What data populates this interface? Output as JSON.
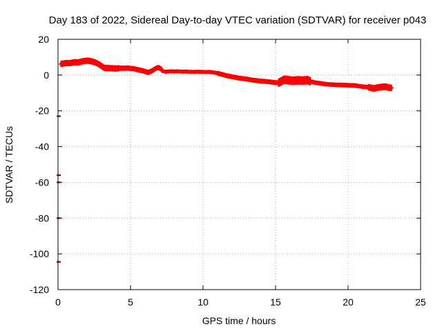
{
  "chart_data": {
    "type": "scatter",
    "title": "Day 183 of 2022, Sidereal Day-to-day VTEC variation (SDTVAR) for receiver p043",
    "xlabel": "GPS time / hours",
    "ylabel": "SDTVAR / TECUs",
    "xlim": [
      0,
      25
    ],
    "ylim": [
      -120,
      20
    ],
    "xticks": [
      0,
      5,
      10,
      15,
      20,
      25
    ],
    "yticks": [
      20,
      0,
      -20,
      -40,
      -60,
      -80,
      -100,
      -120
    ],
    "grid": true,
    "series": [
      {
        "name": "SDTVAR",
        "color": "#ff0000",
        "outlier_color": "#8b0000",
        "points": [
          [
            0.2,
            6.2
          ],
          [
            0.4,
            6.5
          ],
          [
            0.6,
            6.8
          ],
          [
            0.8,
            6.6
          ],
          [
            1.0,
            7.0
          ],
          [
            1.2,
            7.2
          ],
          [
            1.4,
            7.0
          ],
          [
            1.6,
            7.6
          ],
          [
            1.8,
            7.8
          ],
          [
            2.0,
            8.1
          ],
          [
            2.2,
            7.9
          ],
          [
            2.4,
            7.5
          ],
          [
            2.6,
            7.0
          ],
          [
            2.8,
            6.2
          ],
          [
            3.0,
            5.0
          ],
          [
            3.2,
            4.0
          ],
          [
            3.4,
            3.9
          ],
          [
            3.6,
            3.8
          ],
          [
            3.8,
            3.8
          ],
          [
            4.0,
            3.6
          ],
          [
            4.2,
            3.8
          ],
          [
            4.4,
            3.9
          ],
          [
            4.6,
            3.8
          ],
          [
            4.8,
            4.0
          ],
          [
            5.0,
            3.7
          ],
          [
            5.2,
            3.6
          ],
          [
            5.4,
            3.2
          ],
          [
            5.6,
            2.8
          ],
          [
            5.8,
            2.5
          ],
          [
            6.0,
            2.0
          ],
          [
            6.2,
            1.5
          ],
          [
            6.4,
            2.0
          ],
          [
            6.6,
            3.0
          ],
          [
            6.8,
            4.0
          ],
          [
            7.0,
            4.2
          ],
          [
            7.2,
            2.5
          ],
          [
            7.4,
            1.8
          ],
          [
            7.6,
            2.0
          ],
          [
            7.8,
            2.1
          ],
          [
            8.0,
            2.0
          ],
          [
            8.2,
            2.1
          ],
          [
            8.4,
            2.0
          ],
          [
            8.6,
            1.9
          ],
          [
            8.8,
            2.0
          ],
          [
            9.0,
            1.9
          ],
          [
            9.2,
            1.8
          ],
          [
            9.4,
            1.8
          ],
          [
            9.6,
            1.9
          ],
          [
            9.8,
            1.8
          ],
          [
            10.0,
            1.8
          ],
          [
            10.2,
            1.7
          ],
          [
            10.4,
            1.8
          ],
          [
            10.6,
            1.6
          ],
          [
            10.8,
            1.4
          ],
          [
            11.0,
            1.0
          ],
          [
            11.2,
            0.6
          ],
          [
            11.4,
            0.2
          ],
          [
            11.6,
            -0.3
          ],
          [
            11.8,
            -0.6
          ],
          [
            12.0,
            -1.0
          ],
          [
            12.2,
            -1.2
          ],
          [
            12.4,
            -1.6
          ],
          [
            12.6,
            -1.8
          ],
          [
            12.8,
            -2.0
          ],
          [
            13.0,
            -2.2
          ],
          [
            13.2,
            -2.5
          ],
          [
            13.4,
            -2.8
          ],
          [
            13.6,
            -3.0
          ],
          [
            13.8,
            -3.2
          ],
          [
            14.0,
            -3.4
          ],
          [
            14.2,
            -3.5
          ],
          [
            14.4,
            -3.6
          ],
          [
            14.6,
            -3.8
          ],
          [
            14.8,
            -4.0
          ],
          [
            15.0,
            -4.2
          ],
          [
            15.2,
            -4.3
          ],
          [
            15.4,
            -3.5
          ],
          [
            15.6,
            -2.5
          ],
          [
            15.8,
            -2.8
          ],
          [
            16.0,
            -3.0
          ],
          [
            16.2,
            -3.2
          ],
          [
            16.4,
            -3.0
          ],
          [
            16.6,
            -2.9
          ],
          [
            16.8,
            -3.1
          ],
          [
            17.0,
            -3.0
          ],
          [
            17.2,
            -2.8
          ],
          [
            17.4,
            -3.5
          ],
          [
            17.6,
            -4.0
          ],
          [
            17.8,
            -4.3
          ],
          [
            18.0,
            -4.5
          ],
          [
            18.2,
            -4.8
          ],
          [
            18.4,
            -5.0
          ],
          [
            18.6,
            -5.2
          ],
          [
            18.8,
            -5.3
          ],
          [
            19.0,
            -5.4
          ],
          [
            19.2,
            -5.5
          ],
          [
            19.4,
            -5.5
          ],
          [
            19.6,
            -5.6
          ],
          [
            19.8,
            -5.6
          ],
          [
            20.0,
            -5.7
          ],
          [
            20.2,
            -5.8
          ],
          [
            20.4,
            -5.8
          ],
          [
            20.6,
            -6.0
          ],
          [
            20.8,
            -6.2
          ],
          [
            21.0,
            -6.5
          ],
          [
            21.2,
            -6.6
          ],
          [
            21.4,
            -6.8
          ],
          [
            21.6,
            -7.2
          ],
          [
            21.8,
            -7.5
          ],
          [
            22.0,
            -7.0
          ],
          [
            22.2,
            -6.8
          ],
          [
            22.4,
            -6.6
          ],
          [
            22.6,
            -6.5
          ],
          [
            22.8,
            -7.0
          ],
          [
            23.0,
            -7.2
          ]
        ],
        "thick_segments": [
          [
            0.2,
            4.2,
            3.0
          ],
          [
            4.2,
            7.2,
            2.4
          ],
          [
            7.2,
            11.0,
            1.6
          ],
          [
            11.0,
            15.2,
            2.2
          ],
          [
            15.2,
            17.4,
            4.2
          ],
          [
            17.4,
            21.4,
            2.0
          ],
          [
            21.4,
            23.0,
            3.2
          ]
        ],
        "outliers": [
          [
            0.05,
            -23.0
          ],
          [
            0.05,
            -56.0
          ],
          [
            0.05,
            -60.0
          ],
          [
            0.05,
            -80.0
          ],
          [
            0.05,
            -104.5
          ]
        ]
      }
    ]
  }
}
